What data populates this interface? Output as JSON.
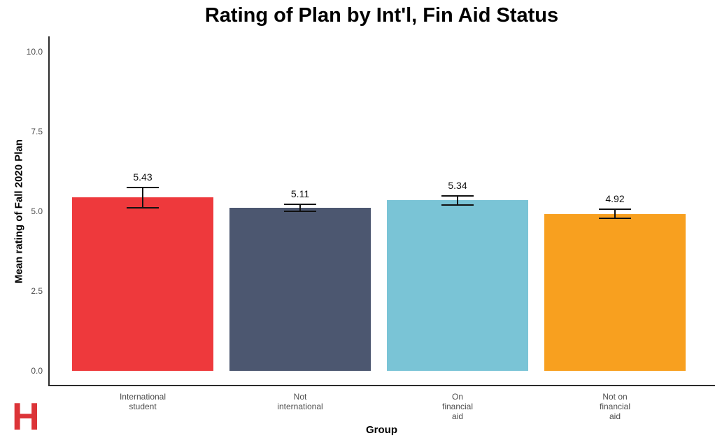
{
  "logo": {
    "letter": "H"
  },
  "chart_data": {
    "type": "bar",
    "title": "Rating of Plan by Int'l, Fin Aid Status",
    "xlabel": "Group",
    "ylabel": "Mean rating of Fall 2020 Plan",
    "ylim": [
      0,
      10
    ],
    "yticks": [
      "0.0",
      "2.5",
      "5.0",
      "7.5",
      "10.0"
    ],
    "grid": false,
    "legend": false,
    "categories": [
      [
        "International",
        "student"
      ],
      [
        "Not",
        "international"
      ],
      [
        "On",
        "financial",
        "aid"
      ],
      [
        "Not on",
        "financial",
        "aid"
      ]
    ],
    "values": [
      5.43,
      5.11,
      5.34,
      4.92
    ],
    "value_labels": [
      "5.43",
      "5.11",
      "5.34",
      "4.92"
    ],
    "error_bars": {
      "low": [
        5.12,
        5.0,
        5.2,
        4.78
      ],
      "high": [
        5.74,
        5.22,
        5.48,
        5.07
      ]
    },
    "bar_colors": [
      "#ee393c",
      "#4c5770",
      "#7ac4d6",
      "#f8a01f"
    ]
  },
  "colors": {
    "axis_line": "#2b2b2b",
    "tick_label": "#4d4d4d",
    "value_label": "#111111",
    "logo_red": "#dc3438"
  }
}
